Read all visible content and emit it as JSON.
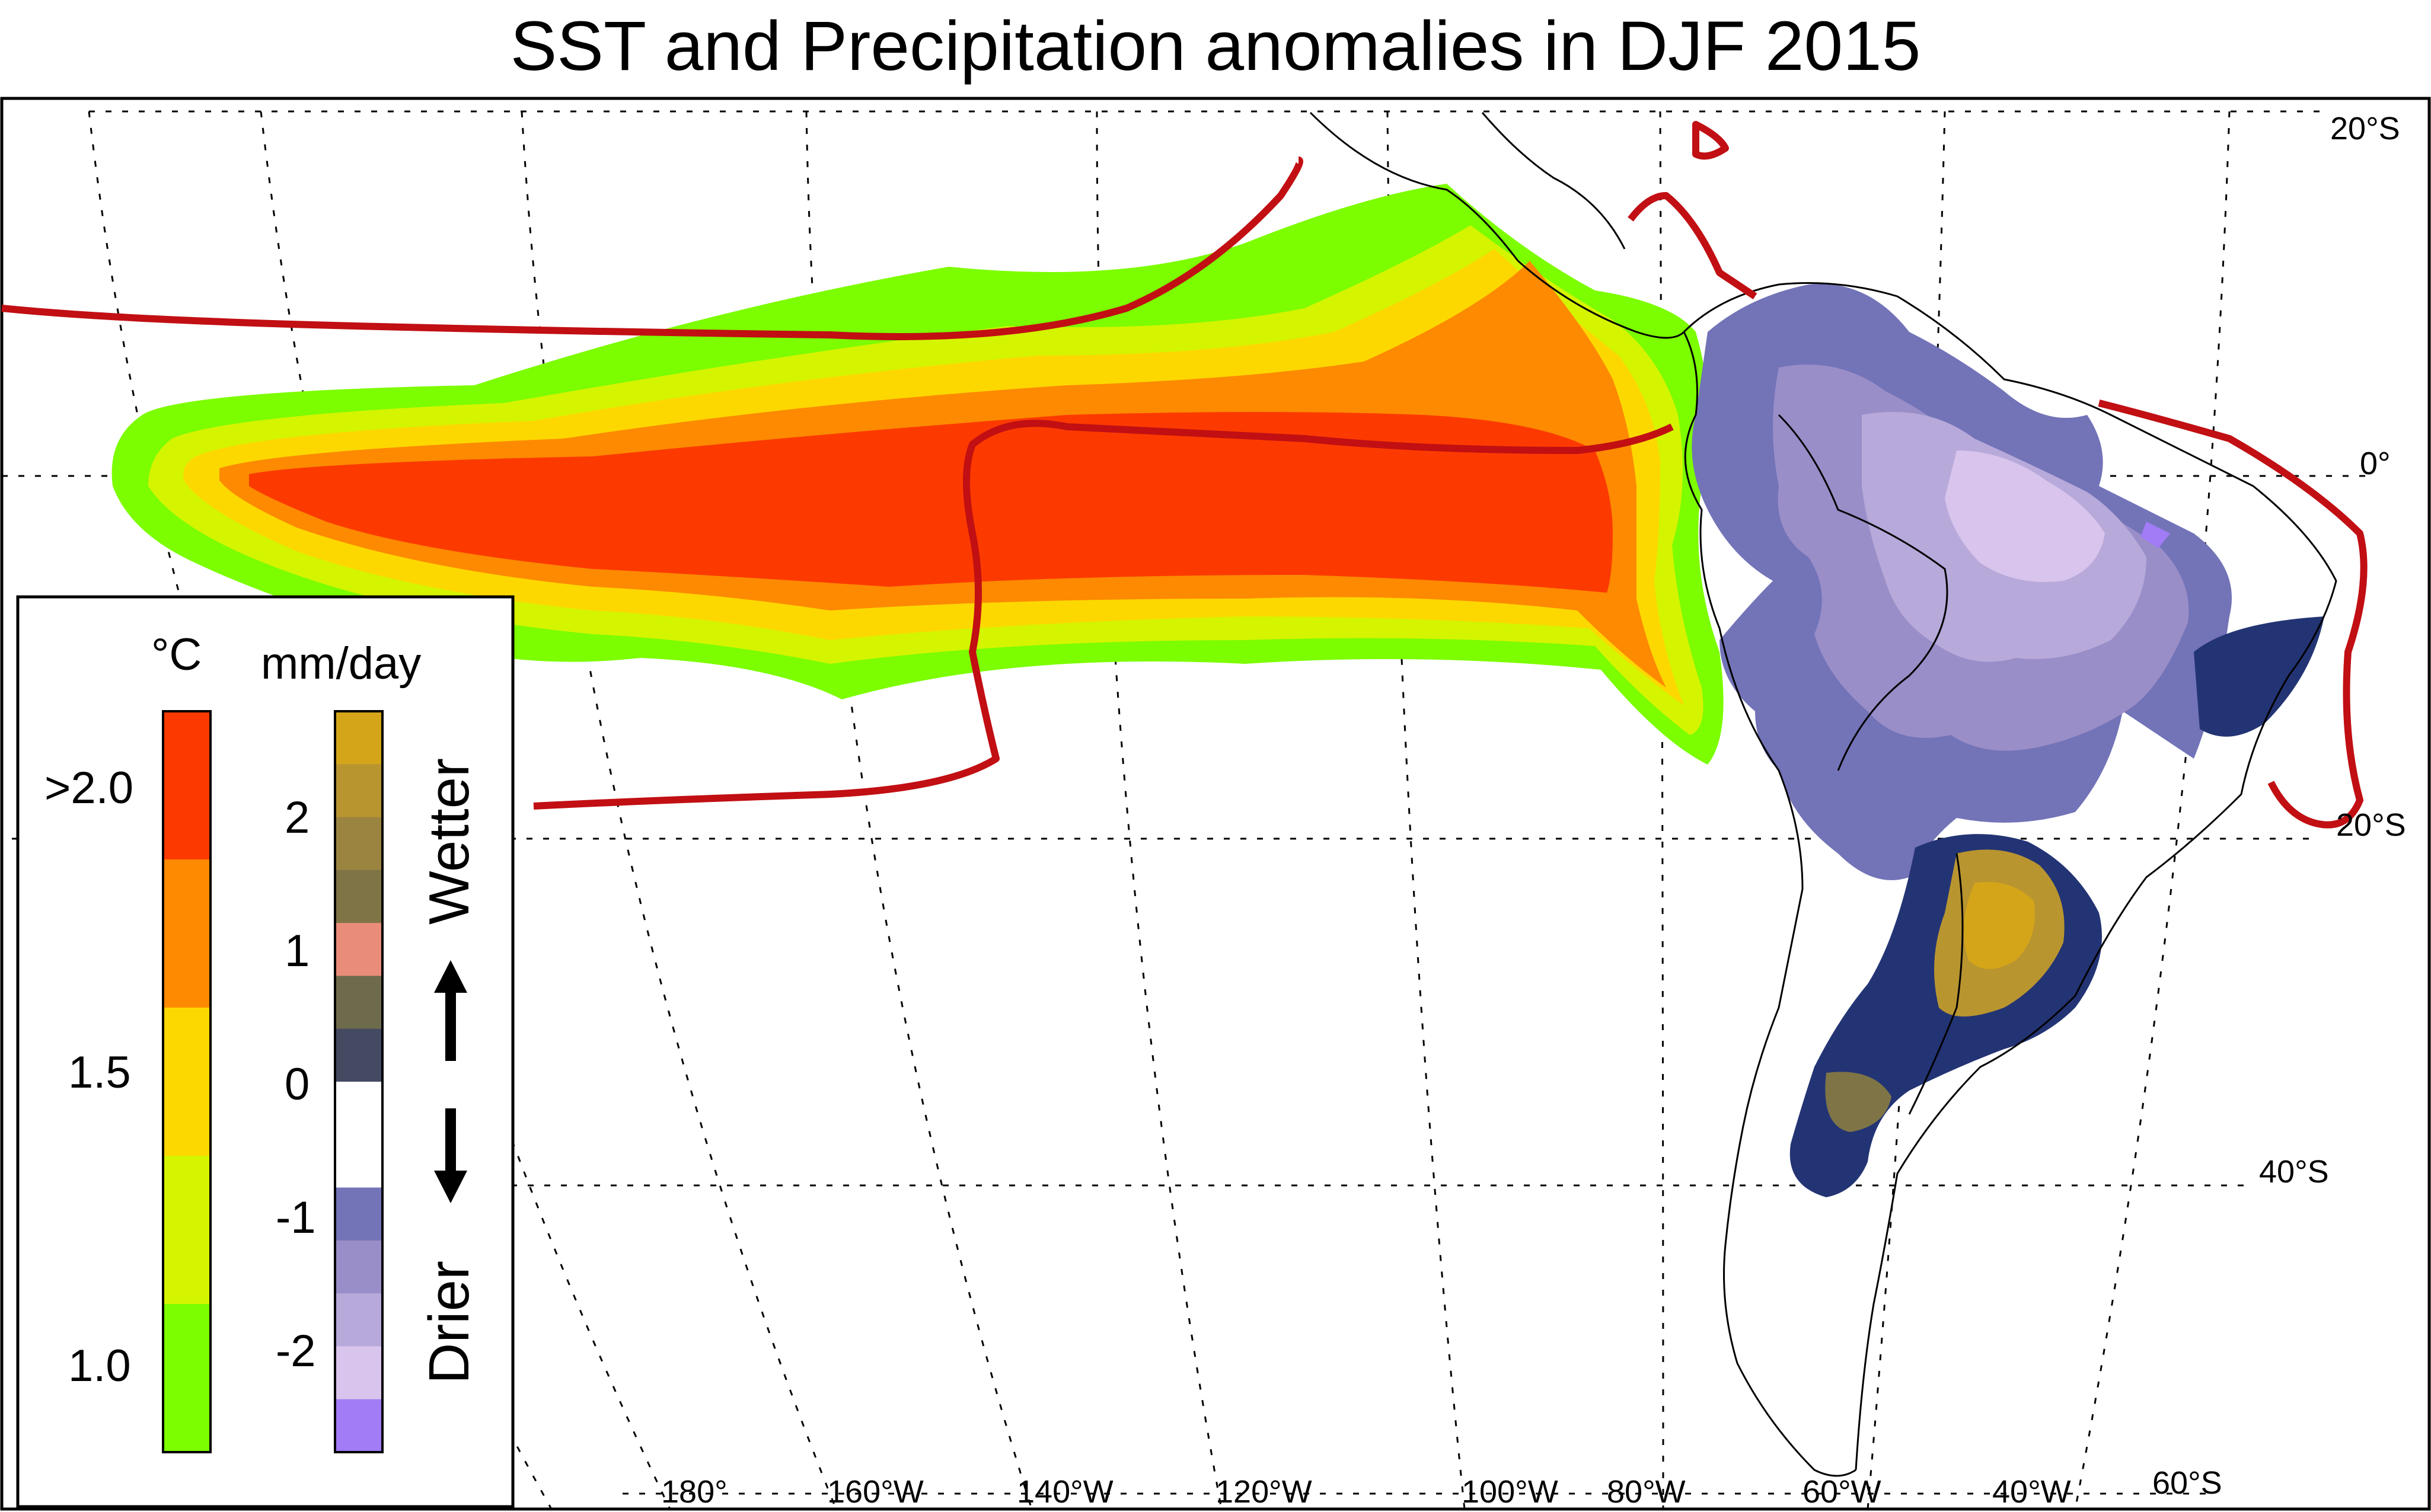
{
  "title": "SST and Precipitation anomalies in DJF 2015",
  "latitude_labels": [
    "20°S",
    "0°",
    "20°S",
    "40°S",
    "60°S"
  ],
  "longitude_labels": [
    "180°",
    "160°W",
    "140°W",
    "120°W",
    "100°W",
    "80°W",
    "60°W",
    "40°W"
  ],
  "legend": {
    "sst_unit": "°C",
    "sst_ticks": [
      ">2.0",
      "1.5",
      "1.0"
    ],
    "sst_colors": [
      "#fc3a00",
      "#fd8a00",
      "#fdd800",
      "#d5f400",
      "#7cfd00"
    ],
    "precip_unit": "mm/day",
    "precip_ticks": [
      "2",
      "1",
      "0",
      "-1",
      "-2"
    ],
    "precip_colors": [
      "#d4a519",
      "#b99530",
      "#9a8440",
      "#7e7446",
      "#e98c7a",
      "#6e6a4c",
      "#454a63",
      "#ffffff",
      "#ffffff",
      "#7373b8",
      "#9a8ec8",
      "#b7a9da",
      "#d8c4ec",
      "#a27bf6"
    ],
    "wetter_label": "Wetter",
    "drier_label": "Drier"
  },
  "colors": {
    "contour_line": "#c10f13",
    "coastline": "#000000",
    "grid": "#000000"
  }
}
